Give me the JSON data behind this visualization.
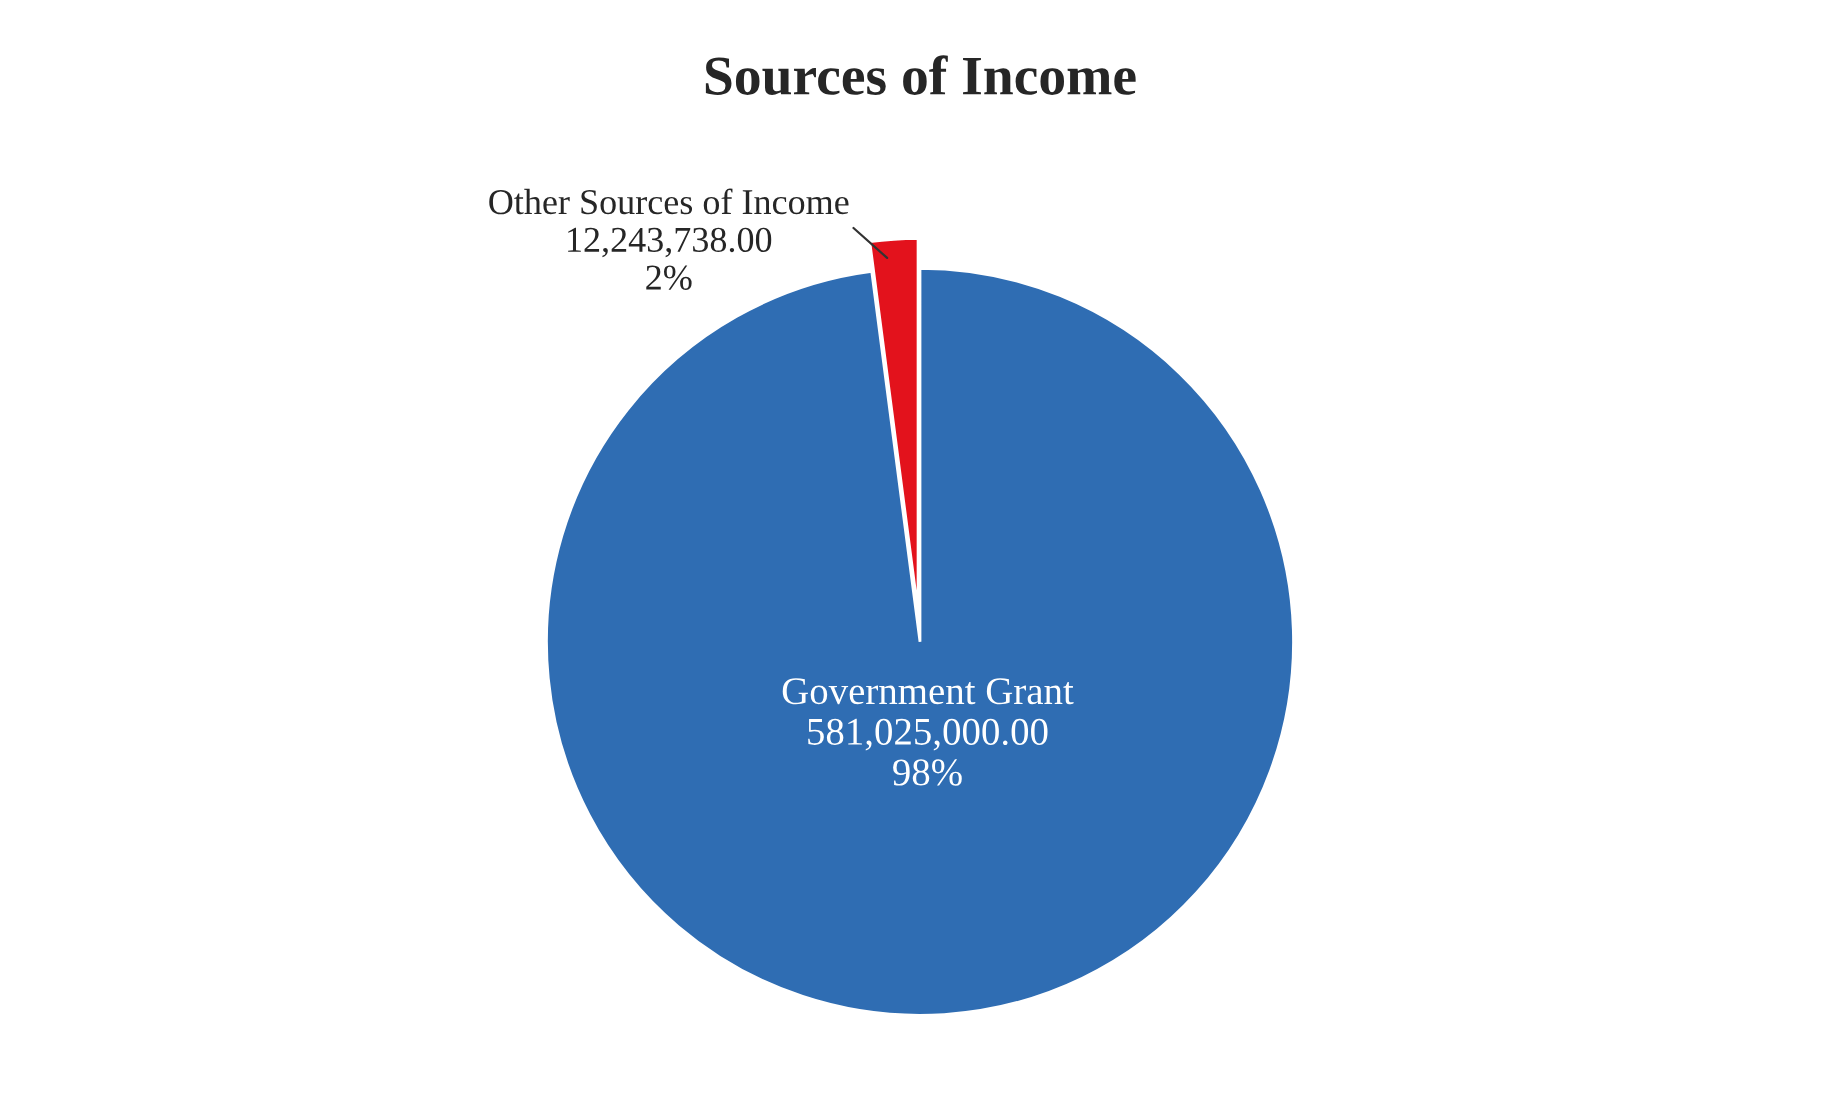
{
  "chart_data": {
    "type": "pie",
    "title": "Sources of Income",
    "categories": [
      "Other Sources of Income",
      "Government Grant"
    ],
    "values": [
      12243738,
      581025000
    ],
    "value_labels": [
      "12,243,738.00\n2%",
      "581,025,000.00\n98%"
    ],
    "colors": [
      "#e3121c",
      "#2f6db3"
    ],
    "legend": false
  }
}
